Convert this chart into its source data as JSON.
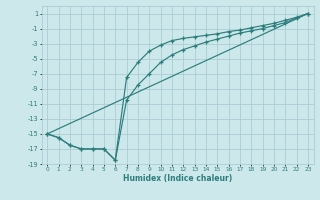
{
  "xlabel": "Humidex (Indice chaleur)",
  "bg_color": "#cce8ea",
  "grid_color": "#aacdd4",
  "line_color": "#2d7d7d",
  "xlim": [
    -0.5,
    23.5
  ],
  "ylim": [
    -19,
    2
  ],
  "xticks": [
    0,
    1,
    2,
    3,
    4,
    5,
    6,
    7,
    8,
    9,
    10,
    11,
    12,
    13,
    14,
    15,
    16,
    17,
    18,
    19,
    20,
    21,
    22,
    23
  ],
  "yticks": [
    1,
    -1,
    -3,
    -5,
    -7,
    -9,
    -11,
    -13,
    -15,
    -17,
    -19
  ],
  "line1_x": [
    0,
    1,
    2,
    3,
    4,
    5,
    6,
    7,
    8,
    9,
    10,
    11,
    12,
    13,
    14,
    15,
    16,
    17,
    18,
    19,
    20,
    21,
    22,
    23
  ],
  "line1_y": [
    -15,
    -15.5,
    -16.5,
    -17,
    -17,
    -17,
    -18.5,
    -7.5,
    -5.5,
    -4,
    -3.2,
    -2.6,
    -2.3,
    -2.1,
    -1.9,
    -1.7,
    -1.4,
    -1.2,
    -0.9,
    -0.6,
    -0.3,
    0.1,
    0.5,
    1.0
  ],
  "line2_x": [
    0,
    1,
    2,
    3,
    4,
    5,
    6,
    7,
    8,
    9,
    10,
    11,
    12,
    13,
    14,
    15,
    16,
    17,
    18,
    19,
    20,
    21,
    22,
    23
  ],
  "line2_y": [
    -15,
    -15.5,
    -16.5,
    -17,
    -17,
    -17,
    -18.5,
    -10.5,
    -8.5,
    -7,
    -5.5,
    -4.5,
    -3.8,
    -3.3,
    -2.8,
    -2.4,
    -2.0,
    -1.6,
    -1.3,
    -1.0,
    -0.6,
    -0.2,
    0.4,
    1.0
  ],
  "line3_x": [
    0,
    23
  ],
  "line3_y": [
    -15,
    1.0
  ],
  "xticklabels": [
    "0",
    "1",
    "2",
    "3",
    "4",
    "5",
    "6",
    "7",
    "8",
    "9",
    "10",
    "11",
    "12",
    "13",
    "14",
    "15",
    "16",
    "17",
    "18",
    "19",
    "20",
    "21",
    "22",
    "23"
  ]
}
